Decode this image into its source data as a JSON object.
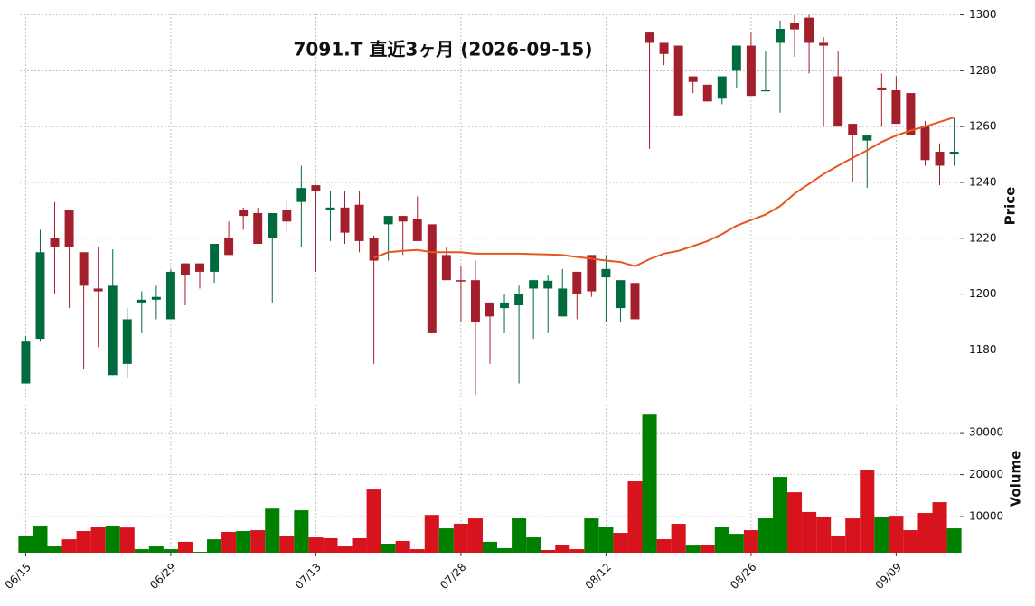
{
  "chart_data": {
    "type": "candlestick",
    "title": "7091.T  直近3ヶ月  (2026-09-15)",
    "ylabel": "Price",
    "volume_label": "Volume",
    "categories": [
      "06/15",
      null,
      null,
      null,
      null,
      null,
      null,
      null,
      null,
      null,
      "06/29",
      null,
      null,
      null,
      null,
      null,
      null,
      null,
      null,
      null,
      "07/13",
      null,
      null,
      null,
      null,
      null,
      null,
      null,
      null,
      null,
      "07/28",
      null,
      null,
      null,
      null,
      null,
      null,
      null,
      null,
      null,
      "08/12",
      null,
      null,
      null,
      null,
      null,
      null,
      null,
      null,
      null,
      "08/26",
      null,
      null,
      null,
      null,
      null,
      null,
      null,
      null,
      null,
      "09/09",
      null,
      null,
      null,
      null
    ],
    "open": [
      1168,
      1184,
      1220,
      1230,
      1215,
      1202,
      1171,
      1175,
      1197,
      1198,
      1191,
      1211,
      1211,
      1208,
      1220,
      1230,
      1229,
      1220,
      1230,
      1233,
      1239,
      1230,
      1231,
      1232,
      1220,
      1225,
      1228,
      1227,
      1225,
      1214,
      1205,
      1205,
      1197,
      1195,
      1196,
      1202,
      1202,
      1192,
      1208,
      1214,
      1206,
      1195,
      1204,
      1294,
      1290,
      1289,
      1278,
      1275,
      1270,
      1280,
      1289,
      1273,
      1290,
      1297,
      1299,
      1290,
      1278,
      1261,
      1255,
      1274,
      1273,
      1272,
      1260,
      1251,
      1250
    ],
    "high": [
      1185,
      1223,
      1233,
      1230,
      1215,
      1217,
      1216,
      1195,
      1201,
      1203,
      1209,
      1211,
      1211,
      1218,
      1226,
      1231,
      1231,
      1229,
      1234,
      1246,
      1239,
      1237,
      1237,
      1237,
      1221,
      1228,
      1228,
      1235,
      1225,
      1217,
      1210,
      1212,
      1197,
      1200,
      1203,
      1205,
      1207,
      1209,
      1208,
      1214,
      1214,
      1205,
      1216,
      1294,
      1290,
      1289,
      1278,
      1275,
      1278,
      1289,
      1294,
      1287,
      1298,
      1300,
      1300,
      1292,
      1287,
      1261,
      1257,
      1279,
      1278,
      1272,
      1262,
      1254,
      1263
    ],
    "low": [
      1168,
      1183,
      1200,
      1195,
      1173,
      1181,
      1171,
      1170,
      1186,
      1191,
      1191,
      1196,
      1202,
      1204,
      1214,
      1223,
      1218,
      1197,
      1222,
      1217,
      1208,
      1219,
      1218,
      1215,
      1175,
      1212,
      1214,
      1219,
      1186,
      1205,
      1190,
      1164,
      1175,
      1186,
      1168,
      1184,
      1186,
      1192,
      1191,
      1199,
      1190,
      1190,
      1177,
      1252,
      1282,
      1264,
      1272,
      1269,
      1268,
      1274,
      1271,
      1273,
      1265,
      1285,
      1279,
      1260,
      1260,
      1240,
      1238,
      1260,
      1261,
      1257,
      1246,
      1239,
      1246
    ],
    "close": [
      1183,
      1215,
      1217,
      1217,
      1203,
      1201,
      1203,
      1191,
      1198,
      1199,
      1208,
      1207,
      1208,
      1218,
      1214,
      1228,
      1218,
      1229,
      1226,
      1238,
      1237,
      1231,
      1222,
      1219,
      1212,
      1228,
      1226,
      1219,
      1186,
      1205,
      1204.5,
      1190,
      1192,
      1197,
      1200,
      1205,
      1204.8,
      1202,
      1200,
      1201,
      1209,
      1205,
      1191,
      1290,
      1286,
      1264,
      1276,
      1269,
      1278,
      1289,
      1271,
      1273,
      1295,
      1294.8,
      1290,
      1289,
      1260,
      1257,
      1256.8,
      1273,
      1261,
      1257,
      1248,
      1246,
      1251
    ],
    "ma": [
      null,
      null,
      null,
      null,
      null,
      null,
      null,
      null,
      null,
      null,
      null,
      null,
      null,
      null,
      null,
      null,
      null,
      null,
      null,
      null,
      null,
      null,
      null,
      null,
      1213,
      1215,
      1215.5,
      1215.8,
      1215,
      1215,
      1215,
      1214.5,
      1214.5,
      1214.5,
      1214.5,
      1214.3,
      1214.2,
      1214,
      1213.3,
      1212.7,
      1212,
      1211.5,
      1210,
      1212.5,
      1214.5,
      1215.5,
      1217.2,
      1219,
      1221.5,
      1224.5,
      1226.5,
      1228.5,
      1231.5,
      1236,
      1239.5,
      1243,
      1246,
      1248.8,
      1251.5,
      1254.5,
      1256.8,
      1258.6,
      1260,
      1261.7,
      1263.3
    ],
    "volume": [
      5500,
      7850,
      2900,
      4600,
      6560,
      7600,
      7850,
      7400,
      2250,
      2900,
      2250,
      4000,
      1600,
      4600,
      6350,
      6560,
      6770,
      11900,
      5300,
      11500,
      5050,
      4850,
      2900,
      4850,
      16450,
      3550,
      4200,
      2250,
      10400,
      7200,
      8300,
      9570,
      4000,
      2470,
      9570,
      5050,
      2050,
      3330,
      2250,
      9570,
      7630,
      6130,
      18400,
      34500,
      4620,
      8280,
      3100,
      3330,
      7630,
      5900,
      6770,
      9570,
      19460,
      15800,
      11100,
      10000,
      5500,
      9570,
      21200,
      9800,
      10200,
      6770,
      10860,
      13440,
      7200
    ],
    "ylim": [
      1163,
      1300.5
    ],
    "yticks": [
      1180,
      1200,
      1220,
      1240,
      1260,
      1280,
      1300
    ],
    "volume_ylim": [
      1400,
      36700
    ],
    "volume_yticks": [
      10000,
      20000,
      30000
    ],
    "grid": true,
    "up_color": "#006b3c",
    "down_color": "#a21f2b",
    "volume_up_color": "#008000",
    "volume_down_color": "#d7141e",
    "ma_color": "#e8561f"
  }
}
